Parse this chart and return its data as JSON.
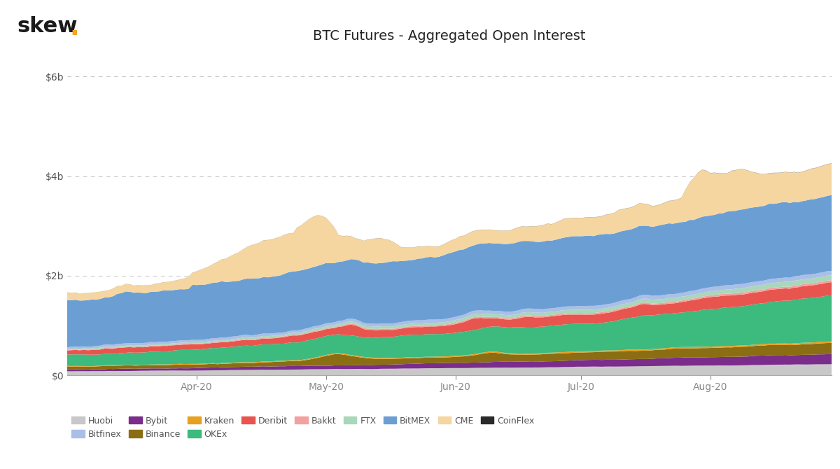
{
  "title": "BTC Futures - Aggregated Open Interest",
  "branding_text": "skew",
  "branding_dot": ".",
  "branding_color": "#f5a623",
  "yticks": [
    0,
    2000000000,
    4000000000,
    6000000000
  ],
  "ylim": [
    0,
    6500000000
  ],
  "n_points": 184,
  "xtick_labels": [
    "Apr-20",
    "May-20",
    "Jun-20",
    "Jul-20",
    "Aug-20"
  ],
  "xtick_positions": [
    31,
    62,
    93,
    123,
    154
  ],
  "background_color": "#ffffff",
  "grid_color": "#bbbbbb",
  "axis_color": "#aaaaaa",
  "title_fontsize": 14,
  "label_fontsize": 10,
  "legend_fontsize": 9,
  "legend_order": [
    "Huobi",
    "Bitfinex",
    "Bybit",
    "Binance",
    "Kraken",
    "OKEx",
    "Deribit",
    "Bakkt",
    "FTX",
    "BitMEX",
    "CME",
    "CoinFlex"
  ],
  "stack_order": [
    "Huobi",
    "Bybit",
    "Binance",
    "Kraken",
    "OKEx",
    "Deribit",
    "Bakkt",
    "FTX",
    "Bitfinex",
    "BitMEX",
    "CME",
    "CoinFlex"
  ],
  "colors": {
    "Huobi": "#c8c8c8",
    "Bybit": "#7b2d8b",
    "Binance": "#8b6e14",
    "Kraken": "#e8a020",
    "OKEx": "#3dba7e",
    "Deribit": "#e8554e",
    "Bakkt": "#f4a0a0",
    "FTX": "#a8d8b9",
    "Bitfinex": "#aabfe8",
    "BitMEX": "#6b9fd4",
    "CME": "#f5d6a0",
    "CoinFlex": "#2a2a2a"
  }
}
